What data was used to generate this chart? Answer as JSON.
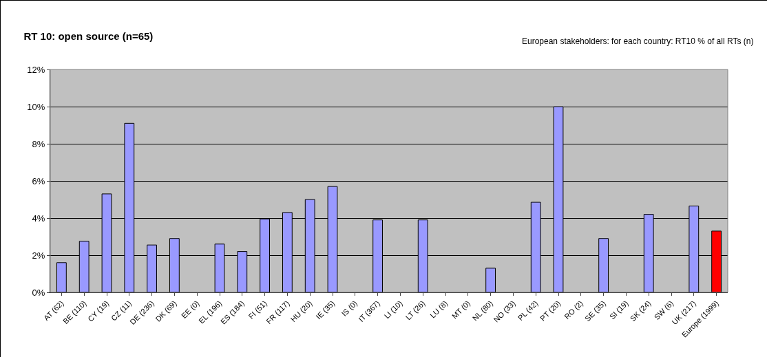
{
  "chart_data": {
    "type": "bar",
    "title": "RT 10: open source (n=65)",
    "subtitle": "European stakeholders: for each country: RT10 % of all RTs (n)",
    "categories": [
      "AT (62)",
      "BE (110)",
      "CY (19)",
      "CZ (11)",
      "DE (236)",
      "DK (69)",
      "EE (0)",
      "EL (196)",
      "ES (184)",
      "FI (51)",
      "FR (117)",
      "HU (20)",
      "IE (35)",
      "IS (0)",
      "IT (367)",
      "LI (10)",
      "LT (26)",
      "LU (8)",
      "MT (0)",
      "NL (80)",
      "NO (33)",
      "PL (42)",
      "PT (20)",
      "RO (2)",
      "SE (35)",
      "SI (19)",
      "SK (24)",
      "SW (6)",
      "UK (217)",
      "Europe (1999)"
    ],
    "values": [
      1.6,
      2.75,
      5.3,
      9.1,
      2.55,
      2.9,
      0,
      2.6,
      2.2,
      3.95,
      4.3,
      5.0,
      5.7,
      0,
      3.9,
      0,
      3.9,
      0,
      0,
      1.3,
      0,
      4.85,
      10.0,
      0,
      2.9,
      0,
      4.2,
      0,
      4.65,
      3.3
    ],
    "colors": [
      "#9999ff",
      "#9999ff",
      "#9999ff",
      "#9999ff",
      "#9999ff",
      "#9999ff",
      "#9999ff",
      "#9999ff",
      "#9999ff",
      "#9999ff",
      "#9999ff",
      "#9999ff",
      "#9999ff",
      "#9999ff",
      "#9999ff",
      "#9999ff",
      "#9999ff",
      "#9999ff",
      "#9999ff",
      "#9999ff",
      "#9999ff",
      "#9999ff",
      "#9999ff",
      "#9999ff",
      "#9999ff",
      "#9999ff",
      "#9999ff",
      "#9999ff",
      "#9999ff",
      "#ff0000"
    ],
    "ylim": [
      0,
      12
    ],
    "yticks": [
      {
        "value": 0,
        "label": "0%"
      },
      {
        "value": 2,
        "label": "2%"
      },
      {
        "value": 4,
        "label": "4%"
      },
      {
        "value": 6,
        "label": "6%"
      },
      {
        "value": 8,
        "label": "8%"
      },
      {
        "value": 10,
        "label": "10%"
      },
      {
        "value": 12,
        "label": "12%"
      }
    ],
    "grid": "y"
  }
}
